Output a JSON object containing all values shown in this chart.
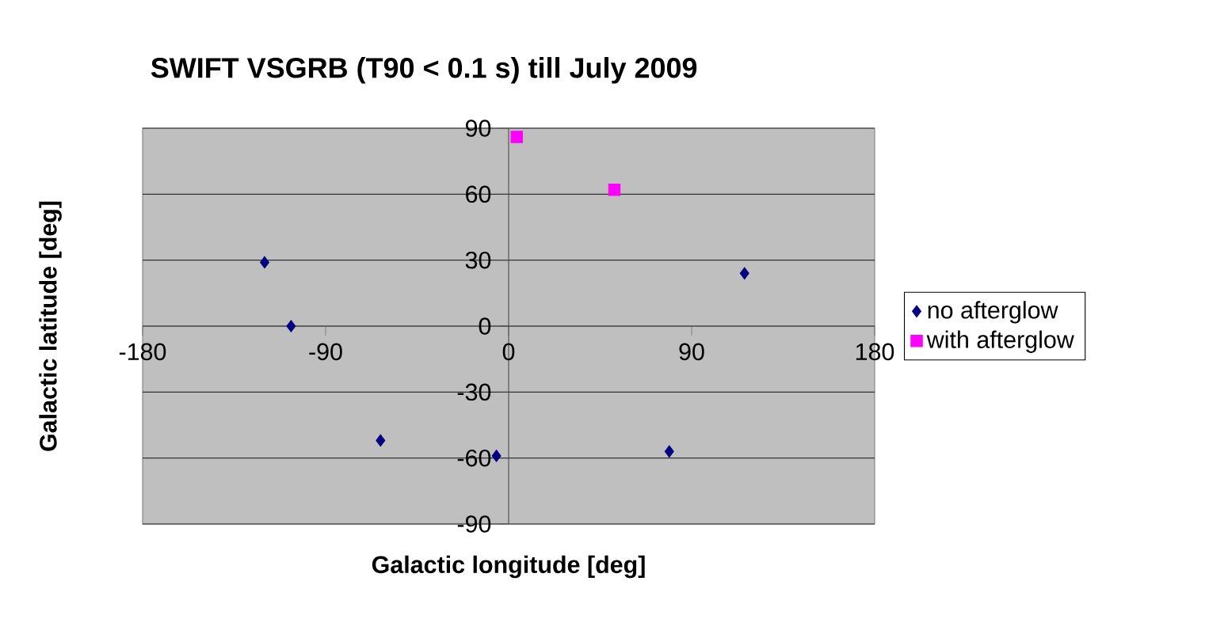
{
  "chart_data": {
    "type": "scatter",
    "title": "SWIFT VSGRB (T90 < 0.1 s) till July 2009",
    "xlabel": "Galactic longitude [deg]",
    "ylabel": "Galactic latitude [deg]",
    "series": [
      {
        "name": "no afterglow",
        "color": "#000080",
        "marker": "diamond",
        "x": [
          -120,
          -107,
          -63,
          -6,
          79,
          116
        ],
        "values": [
          29,
          0,
          -52,
          -59,
          -57,
          24
        ]
      },
      {
        "name": "with afterglow",
        "color": "#ff00ff",
        "marker": "square",
        "x": [
          4,
          52
        ],
        "values": [
          86,
          62
        ]
      }
    ],
    "xlim": [
      -180,
      180
    ],
    "xticks": [
      -180,
      -90,
      0,
      90,
      180
    ],
    "ylim": [
      -90,
      90
    ],
    "yticks": [
      -90,
      -60,
      -30,
      0,
      30,
      60,
      90
    ],
    "grid": "y",
    "legend": "right"
  }
}
